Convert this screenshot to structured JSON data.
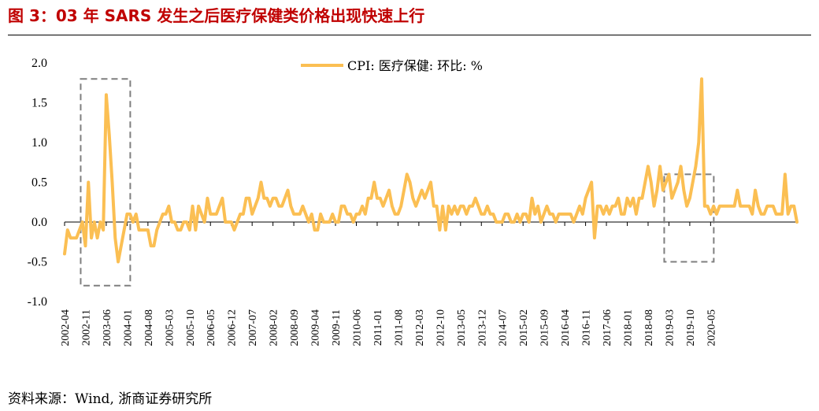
{
  "figure": {
    "title": "图 3：03 年 SARS 发生之后医疗保健类价格出现快速上行",
    "source": "资料来源：Wind, 浙商证券研究所"
  },
  "colors": {
    "title": "#c00000",
    "series": "#fbbf53",
    "box": "#7f7f7f",
    "axis": "#000000"
  },
  "chart_data": {
    "type": "line",
    "title": "",
    "xlabel": "",
    "ylabel": "",
    "ylim": [
      -1.0,
      2.0
    ],
    "yticks": [
      -1.0,
      -0.5,
      0.0,
      0.5,
      1.0,
      1.5,
      2.0
    ],
    "ytick_labels": [
      "-1.0",
      "-0.5",
      "0.0",
      "0.5",
      "1.0",
      "1.5",
      "2.0"
    ],
    "x_start": "2002-04",
    "x_tick_labels": [
      "2002-04",
      "2002-11",
      "2003-06",
      "2004-01",
      "2004-08",
      "2005-03",
      "2005-10",
      "2006-05",
      "2006-12",
      "2007-07",
      "2008-02",
      "2008-09",
      "2009-04",
      "2009-11",
      "2010-06",
      "2011-01",
      "2011-08",
      "2012-03",
      "2012-10",
      "2013-05",
      "2013-12",
      "2014-07",
      "2015-02",
      "2015-09",
      "2016-04",
      "2016-11",
      "2017-06",
      "2018-01",
      "2018-08",
      "2019-03",
      "2019-10",
      "2020-05"
    ],
    "grid": false,
    "legend": "top-center",
    "series": [
      {
        "name": "CPI: 医疗保健: 环比: %",
        "values": [
          -0.4,
          -0.1,
          -0.2,
          -0.2,
          -0.2,
          -0.1,
          0.0,
          -0.3,
          0.5,
          -0.2,
          0.0,
          -0.2,
          0.0,
          -0.1,
          1.6,
          1.1,
          0.5,
          -0.2,
          -0.5,
          -0.3,
          -0.1,
          0.1,
          0.1,
          0.0,
          0.1,
          -0.1,
          -0.1,
          -0.1,
          -0.1,
          -0.3,
          -0.3,
          -0.1,
          0.0,
          0.1,
          0.1,
          0.2,
          0.0,
          0.0,
          -0.1,
          -0.1,
          0.0,
          0.0,
          -0.1,
          0.2,
          -0.1,
          0.2,
          0.1,
          0.0,
          0.3,
          0.1,
          0.1,
          0.1,
          0.2,
          0.3,
          0.0,
          0.0,
          0.0,
          -0.1,
          0.0,
          0.1,
          0.1,
          0.3,
          0.3,
          0.1,
          0.2,
          0.3,
          0.5,
          0.3,
          0.3,
          0.2,
          0.3,
          0.3,
          0.2,
          0.2,
          0.3,
          0.4,
          0.2,
          0.1,
          0.1,
          0.1,
          0.2,
          0.1,
          0.0,
          0.1,
          -0.1,
          -0.1,
          0.1,
          0.0,
          0.0,
          0.0,
          0.1,
          0.0,
          0.0,
          0.2,
          0.2,
          0.1,
          0.1,
          0.0,
          0.1,
          0.1,
          0.2,
          0.1,
          0.3,
          0.3,
          0.5,
          0.3,
          0.3,
          0.2,
          0.3,
          0.4,
          0.2,
          0.1,
          0.1,
          0.2,
          0.4,
          0.6,
          0.5,
          0.3,
          0.2,
          0.3,
          0.4,
          0.3,
          0.4,
          0.5,
          0.2,
          0.2,
          -0.1,
          0.2,
          -0.1,
          0.2,
          0.1,
          0.2,
          0.1,
          0.2,
          0.2,
          0.1,
          0.2,
          0.2,
          0.3,
          0.2,
          0.1,
          0.1,
          0.2,
          0.1,
          0.1,
          0.0,
          0.0,
          0.0,
          0.1,
          0.1,
          0.0,
          0.0,
          0.1,
          0.0,
          0.1,
          0.1,
          0.0,
          0.3,
          0.1,
          0.2,
          0.0,
          0.1,
          0.2,
          0.1,
          0.1,
          0.0,
          0.1,
          0.1,
          0.1,
          0.1,
          0.1,
          0.0,
          0.1,
          0.2,
          0.1,
          0.3,
          0.4,
          0.5,
          -0.2,
          0.2,
          0.2,
          0.1,
          0.2,
          0.1,
          0.2,
          0.2,
          0.3,
          0.1,
          0.1,
          0.3,
          0.2,
          0.3,
          0.1,
          0.3,
          0.3,
          0.5,
          0.7,
          0.5,
          0.2,
          0.4,
          0.7,
          0.4,
          0.5,
          0.6,
          0.3,
          0.4,
          0.5,
          0.7,
          0.4,
          0.2,
          0.3,
          0.5,
          0.7,
          1.0,
          1.8,
          0.2,
          0.2,
          0.1,
          0.2,
          0.1,
          0.2,
          0.2,
          0.2,
          0.2,
          0.2,
          0.2,
          0.4,
          0.2,
          0.2,
          0.2,
          0.2,
          0.1,
          0.4,
          0.2,
          0.1,
          0.1,
          0.2,
          0.2,
          0.2,
          0.1,
          0.1,
          0.1,
          0.6,
          0.1,
          0.2,
          0.2,
          0.0
        ]
      }
    ],
    "highlight_boxes": [
      {
        "from": "2002-11",
        "to": "2004-01",
        "y_from": -0.8,
        "y_to": 1.8
      },
      {
        "from": "2019-03",
        "to": "2020-05",
        "y_from": -0.5,
        "y_to": 0.6
      }
    ]
  }
}
